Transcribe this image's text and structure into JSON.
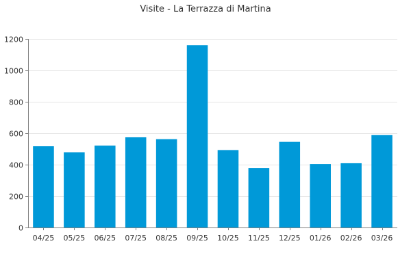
{
  "chart_data": {
    "type": "bar",
    "title": "Visite - La Terrazza di Martina",
    "xlabel": "",
    "ylabel": "",
    "categories": [
      "04/25",
      "05/25",
      "06/25",
      "07/25",
      "08/25",
      "09/25",
      "10/25",
      "11/25",
      "12/25",
      "01/26",
      "02/26",
      "03/26"
    ],
    "values": [
      517,
      478,
      521,
      574,
      562,
      1160,
      492,
      378,
      545,
      404,
      409,
      588
    ],
    "ylim": [
      0,
      1200
    ],
    "yticks": [
      0,
      200,
      400,
      600,
      800,
      1000,
      1200
    ],
    "grid": true,
    "legend": "none",
    "colors": {
      "bar": "#0099d8",
      "grid": "#e6e6e6",
      "axis": "#7f7f7f",
      "text": "#333333"
    }
  }
}
